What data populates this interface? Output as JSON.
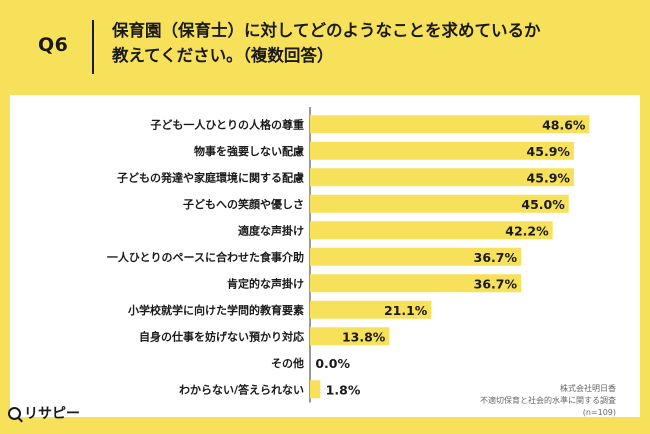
{
  "header": {
    "question_label": "Q6",
    "title_line1": "保育園（保育士）に対してどのようなことを求めているか",
    "title_line2": "教えてください。（複数回答）"
  },
  "brand": {
    "icon": "magnifier-icon",
    "name": "リサピー"
  },
  "source": {
    "company": "株式会社明日香",
    "survey": "不適切保育と社会的水準に関する調査",
    "sample": "(n=109)"
  },
  "colors": {
    "background": "#f7e15a",
    "bar": "#f7e15a",
    "panel": "#ffffff",
    "axis": "#333333"
  },
  "chart_data": {
    "type": "bar",
    "orientation": "horizontal",
    "unit": "%",
    "categories": [
      "子ども一人ひとりの人格の尊重",
      "物事を強要しない配慮",
      "子どもの発達や家庭環境に関する配慮",
      "子どもへの笑顔や優しさ",
      "適度な声掛け",
      "一人ひとりのペースに合わせた食事介助",
      "肯定的な声掛け",
      "小学校就学に向けた学問的教育要素",
      "自身の仕事を妨げない預かり対応",
      "その他",
      "わからない/答えられない"
    ],
    "values": [
      48.6,
      45.9,
      45.9,
      45.0,
      42.2,
      36.7,
      36.7,
      21.1,
      13.8,
      0.0,
      1.8
    ],
    "value_labels": [
      "48.6%",
      "45.9%",
      "45.9%",
      "45.0%",
      "42.2%",
      "36.7%",
      "36.7%",
      "21.1%",
      "13.8%",
      "0.0%",
      "1.8%"
    ],
    "xlim": [
      0,
      55
    ],
    "grid": false,
    "legend": "none"
  }
}
